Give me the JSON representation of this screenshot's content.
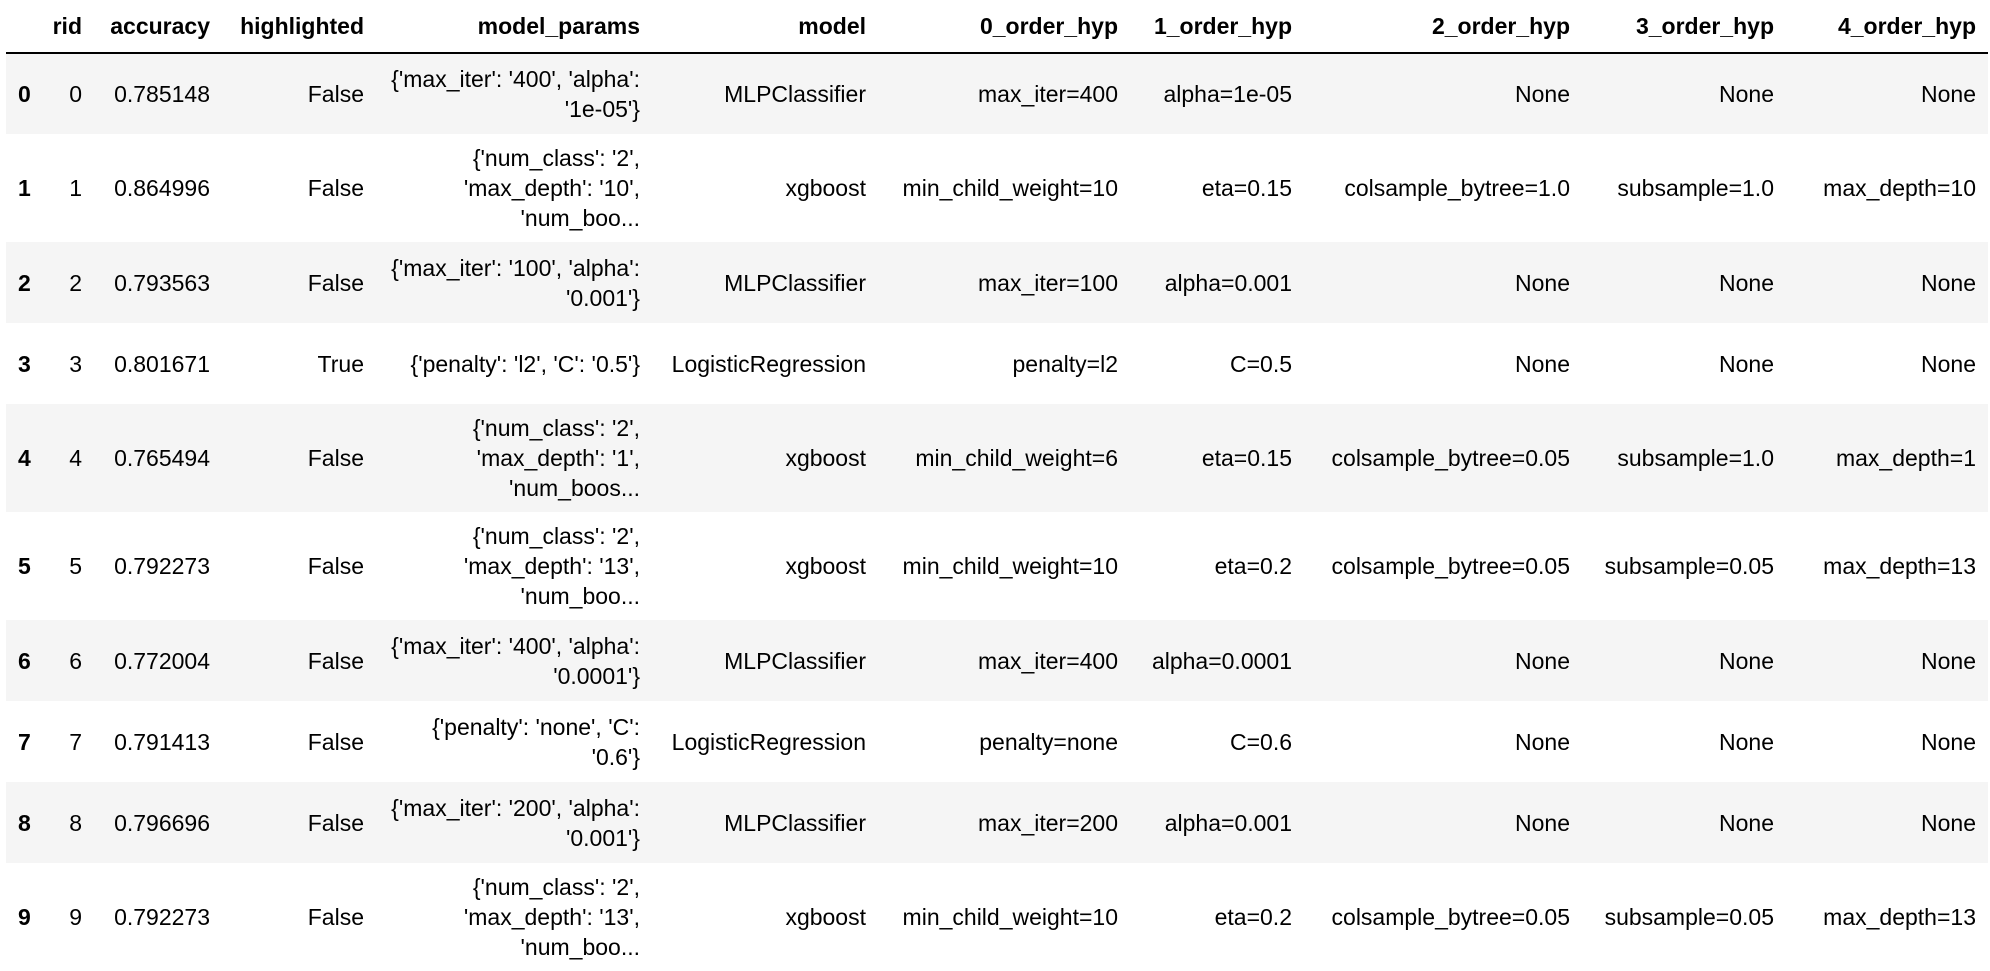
{
  "table": {
    "index_header": "",
    "columns": [
      "rid",
      "accuracy",
      "highlighted",
      "model_params",
      "model",
      "0_order_hyp",
      "1_order_hyp",
      "2_order_hyp",
      "3_order_hyp",
      "4_order_hyp"
    ],
    "rows": [
      {
        "index": "0",
        "cells": [
          "0",
          "0.785148",
          "False",
          "{'max_iter': '400', 'alpha': '1e-05'}",
          "MLPClassifier",
          "max_iter=400",
          "alpha=1e-05",
          "None",
          "None",
          "None"
        ]
      },
      {
        "index": "1",
        "cells": [
          "1",
          "0.864996",
          "False",
          "{'num_class': '2', 'max_depth': '10', 'num_boo...",
          "xgboost",
          "min_child_weight=10",
          "eta=0.15",
          "colsample_bytree=1.0",
          "subsample=1.0",
          "max_depth=10"
        ]
      },
      {
        "index": "2",
        "cells": [
          "2",
          "0.793563",
          "False",
          "{'max_iter': '100', 'alpha': '0.001'}",
          "MLPClassifier",
          "max_iter=100",
          "alpha=0.001",
          "None",
          "None",
          "None"
        ]
      },
      {
        "index": "3",
        "cells": [
          "3",
          "0.801671",
          "True",
          "{'penalty': 'l2', 'C': '0.5'}",
          "LogisticRegression",
          "penalty=l2",
          "C=0.5",
          "None",
          "None",
          "None"
        ]
      },
      {
        "index": "4",
        "cells": [
          "4",
          "0.765494",
          "False",
          "{'num_class': '2', 'max_depth': '1', 'num_boos...",
          "xgboost",
          "min_child_weight=6",
          "eta=0.15",
          "colsample_bytree=0.05",
          "subsample=1.0",
          "max_depth=1"
        ]
      },
      {
        "index": "5",
        "cells": [
          "5",
          "0.792273",
          "False",
          "{'num_class': '2', 'max_depth': '13', 'num_boo...",
          "xgboost",
          "min_child_weight=10",
          "eta=0.2",
          "colsample_bytree=0.05",
          "subsample=0.05",
          "max_depth=13"
        ]
      },
      {
        "index": "6",
        "cells": [
          "6",
          "0.772004",
          "False",
          "{'max_iter': '400', 'alpha': '0.0001'}",
          "MLPClassifier",
          "max_iter=400",
          "alpha=0.0001",
          "None",
          "None",
          "None"
        ]
      },
      {
        "index": "7",
        "cells": [
          "7",
          "0.791413",
          "False",
          "{'penalty': 'none', 'C': '0.6'}",
          "LogisticRegression",
          "penalty=none",
          "C=0.6",
          "None",
          "None",
          "None"
        ]
      },
      {
        "index": "8",
        "cells": [
          "8",
          "0.796696",
          "False",
          "{'max_iter': '200', 'alpha': '0.001'}",
          "MLPClassifier",
          "max_iter=200",
          "alpha=0.001",
          "None",
          "None",
          "None"
        ]
      },
      {
        "index": "9",
        "cells": [
          "9",
          "0.792273",
          "False",
          "{'num_class': '2', 'max_depth': '13', 'num_boo...",
          "xgboost",
          "min_child_weight=10",
          "eta=0.2",
          "colsample_bytree=0.05",
          "subsample=0.05",
          "max_depth=13"
        ]
      }
    ]
  }
}
